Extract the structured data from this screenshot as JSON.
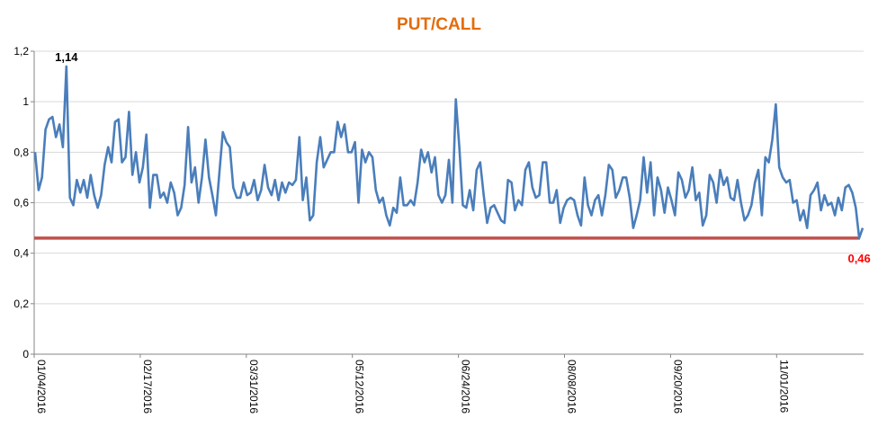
{
  "chart_data": {
    "type": "line",
    "title": "PUT/CALL",
    "xlabel": "",
    "ylabel": "",
    "ylim": [
      0,
      1.2
    ],
    "y_ticks": [
      "0",
      "0,2",
      "0,4",
      "0,6",
      "0,8",
      "1",
      "1,2"
    ],
    "x_tick_labels": [
      "01/04/2016",
      "02/17/2016",
      "03/31/2016",
      "05/12/2016",
      "06/24/2016",
      "08/08/2016",
      "09/20/2016",
      "11/01/2016"
    ],
    "grid": true,
    "legend": "none",
    "series": [
      {
        "values": [
          0.8,
          0.65,
          0.7,
          0.89,
          0.93,
          0.94,
          0.86,
          0.91,
          0.82,
          1.14,
          0.62,
          0.59,
          0.69,
          0.64,
          0.69,
          0.62,
          0.71,
          0.63,
          0.58,
          0.63,
          0.75,
          0.82,
          0.76,
          0.92,
          0.93,
          0.76,
          0.78,
          0.96,
          0.71,
          0.8,
          0.68,
          0.74,
          0.87,
          0.58,
          0.71,
          0.71,
          0.62,
          0.64,
          0.6,
          0.68,
          0.64,
          0.55,
          0.58,
          0.67,
          0.9,
          0.68,
          0.74,
          0.6,
          0.7,
          0.85,
          0.7,
          0.63,
          0.55,
          0.72,
          0.88,
          0.84,
          0.82,
          0.66,
          0.62,
          0.62,
          0.68,
          0.63,
          0.64,
          0.69,
          0.61,
          0.65,
          0.75,
          0.66,
          0.63,
          0.69,
          0.61,
          0.68,
          0.64,
          0.68,
          0.67,
          0.69,
          0.86,
          0.61,
          0.7,
          0.53,
          0.55,
          0.76,
          0.86,
          0.74,
          0.77,
          0.8,
          0.8,
          0.92,
          0.86,
          0.91,
          0.8,
          0.8,
          0.84,
          0.6,
          0.81,
          0.76,
          0.8,
          0.78,
          0.65,
          0.6,
          0.62,
          0.55,
          0.51,
          0.58,
          0.56,
          0.7,
          0.59,
          0.59,
          0.61,
          0.59,
          0.68,
          0.81,
          0.76,
          0.8,
          0.72,
          0.78,
          0.63,
          0.6,
          0.63,
          0.77,
          0.6,
          1.01,
          0.82,
          0.59,
          0.58,
          0.65,
          0.57,
          0.73,
          0.76,
          0.63,
          0.52,
          0.58,
          0.59,
          0.56,
          0.53,
          0.52,
          0.69,
          0.68,
          0.57,
          0.61,
          0.59,
          0.73,
          0.76,
          0.66,
          0.62,
          0.63,
          0.76,
          0.76,
          0.6,
          0.6,
          0.65,
          0.52,
          0.58,
          0.61,
          0.62,
          0.61,
          0.55,
          0.51,
          0.7,
          0.59,
          0.55,
          0.61,
          0.63,
          0.55,
          0.63,
          0.75,
          0.73,
          0.62,
          0.65,
          0.7,
          0.7,
          0.62,
          0.5,
          0.55,
          0.61,
          0.78,
          0.64,
          0.76,
          0.55,
          0.7,
          0.65,
          0.56,
          0.66,
          0.61,
          0.55,
          0.72,
          0.69,
          0.62,
          0.65,
          0.74,
          0.61,
          0.64,
          0.51,
          0.55,
          0.71,
          0.68,
          0.6,
          0.73,
          0.67,
          0.7,
          0.62,
          0.61,
          0.69,
          0.6,
          0.53,
          0.55,
          0.59,
          0.68,
          0.73,
          0.55,
          0.78,
          0.76,
          0.85,
          0.99,
          0.74,
          0.7,
          0.68,
          0.69,
          0.6,
          0.61,
          0.53,
          0.57,
          0.5,
          0.63,
          0.65,
          0.68,
          0.57,
          0.63,
          0.59,
          0.6,
          0.55,
          0.62,
          0.57,
          0.66,
          0.67,
          0.64,
          0.58,
          0.46,
          0.5
        ],
        "color": "#4A7EBB"
      }
    ],
    "reference_line": {
      "value": 0.46,
      "color": "#C0504D"
    },
    "annotations": [
      {
        "text": "1,14",
        "color": "#000000"
      },
      {
        "text": "0,46",
        "color": "#FF0000"
      }
    ],
    "title_color": "#E46C0A"
  }
}
